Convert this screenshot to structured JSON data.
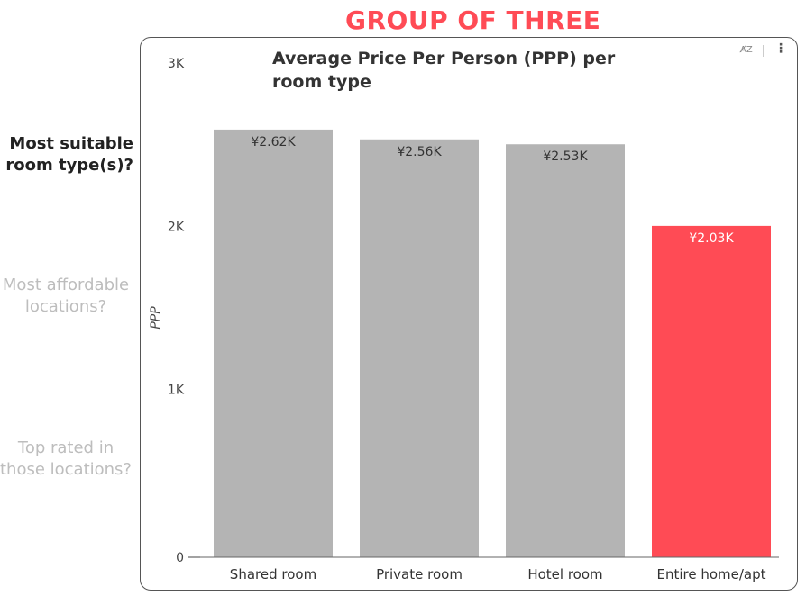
{
  "header": {
    "title": "GROUP OF THREE"
  },
  "nav": {
    "items": [
      {
        "label": "Most suitable room type(s)?",
        "state": "active"
      },
      {
        "label": "Most affordable locations?",
        "state": "inactive"
      },
      {
        "label": "Top rated in those locations?",
        "state": "inactive"
      }
    ]
  },
  "card": {
    "sort_icon": "sort-alpha-icon",
    "more_icon": "vertical-dots-icon"
  },
  "colors": {
    "accent": "#ff4b55",
    "bar_default": "#b4b4b4",
    "active_text": "#222222",
    "inactive_text": "#bdbdbd"
  },
  "chart_data": {
    "type": "bar",
    "title": "Average Price Per Person (PPP) per room type",
    "xlabel": "",
    "ylabel": "PPP",
    "categories": [
      "Shared room",
      "Private room",
      "Hotel room",
      "Entire home/apt"
    ],
    "values": [
      2620,
      2560,
      2530,
      2030
    ],
    "data_labels": [
      "¥2.62K",
      "¥2.56K",
      "¥2.53K",
      "¥2.03K"
    ],
    "highlight": "Entire home/apt",
    "ylim": [
      0,
      3000
    ],
    "yticks": [
      0,
      1000,
      2000,
      3000
    ],
    "ytick_labels": [
      "0",
      "1K",
      "2K",
      "3K"
    ],
    "grid": false,
    "legend": "none"
  }
}
